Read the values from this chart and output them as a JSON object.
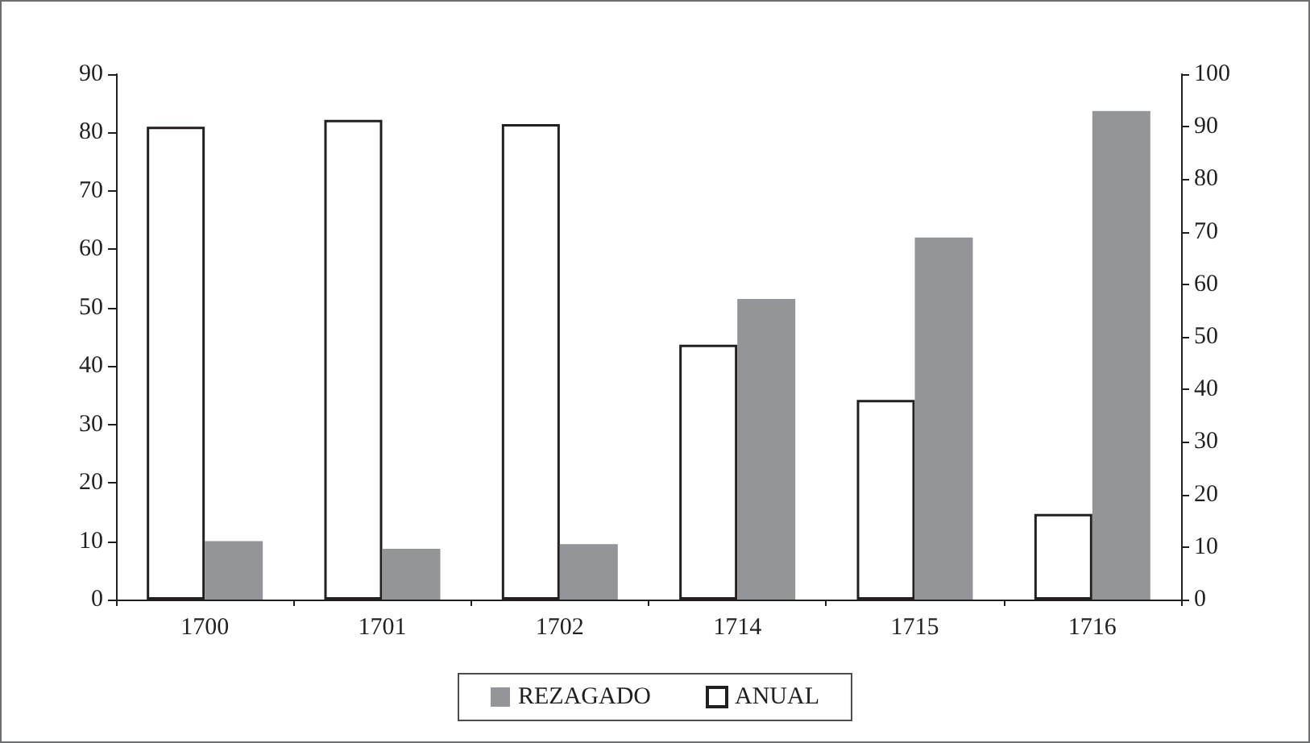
{
  "chart_data": {
    "type": "bar",
    "categories": [
      "1700",
      "1701",
      "1702",
      "1714",
      "1715",
      "1716"
    ],
    "series": [
      {
        "name": "ANUAL",
        "color": "#ffffff",
        "axis": "y2",
        "values": [
          90,
          91.3,
          90.5,
          48.5,
          38,
          16.3
        ]
      },
      {
        "name": "REZAGADO",
        "color": "#939598",
        "values": [
          10,
          8.7,
          9.5,
          51.5,
          62,
          83.7
        ]
      }
    ],
    "ylim": [
      0,
      90
    ],
    "yticks": [
      0,
      10,
      20,
      30,
      40,
      50,
      60,
      70,
      80,
      90
    ],
    "y2lim": [
      0,
      100
    ],
    "y2ticks": [
      0,
      10,
      20,
      30,
      40,
      50,
      60,
      70,
      80,
      90,
      100
    ],
    "grid": false,
    "legend": "bottom"
  }
}
